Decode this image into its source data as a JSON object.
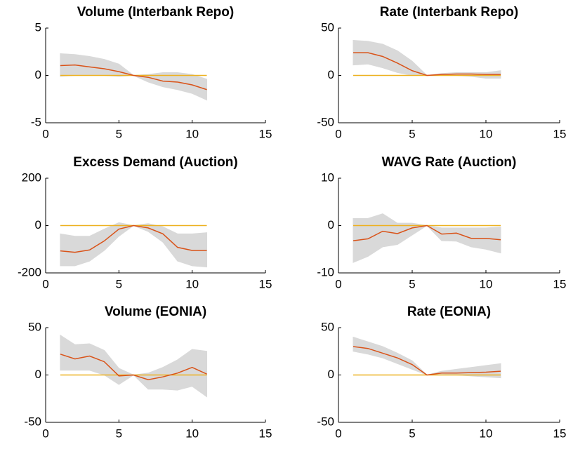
{
  "chart_data": [
    {
      "type": "line",
      "title": "Volume (Interbank Repo)",
      "x": [
        1,
        2,
        3,
        4,
        5,
        6,
        7,
        8,
        9,
        10,
        11
      ],
      "xlim": [
        0,
        15
      ],
      "xticks": [
        0,
        5,
        10,
        15
      ],
      "ylim": [
        -5,
        5
      ],
      "yticks": [
        -5,
        0,
        5
      ],
      "band": {
        "color": "#d9d9d9",
        "upper": [
          2.3,
          2.2,
          2.0,
          1.7,
          1.2,
          0,
          0.1,
          0.3,
          0.3,
          0.1,
          -0.4
        ],
        "lower": [
          -0.1,
          0,
          0,
          0,
          -0.1,
          0,
          -0.7,
          -1.2,
          -1.5,
          -1.9,
          -2.6
        ]
      },
      "series": [
        {
          "color": "#edb120",
          "values": [
            0,
            0,
            0,
            0,
            0,
            0,
            0,
            0,
            0,
            0,
            0
          ]
        },
        {
          "color": "#d95319",
          "values": [
            1.04,
            1.1,
            0.9,
            0.7,
            0.4,
            0,
            -0.2,
            -0.6,
            -0.7,
            -1.0,
            -1.5
          ]
        }
      ]
    },
    {
      "type": "line",
      "title": "Rate (Interbank Repo)",
      "x": [
        1,
        2,
        3,
        4,
        5,
        6,
        7,
        8,
        9,
        10,
        11
      ],
      "xlim": [
        0,
        15
      ],
      "xticks": [
        0,
        5,
        10,
        15
      ],
      "ylim": [
        -50,
        50
      ],
      "yticks": [
        -50,
        0,
        50
      ],
      "band": {
        "color": "#d9d9d9",
        "upper": [
          37,
          36,
          33,
          26,
          15,
          0,
          2,
          3,
          3,
          3,
          5
        ],
        "lower": [
          11,
          12,
          8,
          3,
          0,
          0,
          0,
          0,
          -1,
          -3,
          -3
        ]
      },
      "series": [
        {
          "color": "#edb120",
          "values": [
            0,
            0,
            0,
            0,
            0,
            0,
            0,
            0,
            0,
            0,
            0
          ]
        },
        {
          "color": "#d95319",
          "values": [
            24,
            24,
            20,
            13,
            5,
            0,
            1,
            1.5,
            1.5,
            1,
            1
          ]
        }
      ]
    },
    {
      "type": "line",
      "title": "Excess Demand (Auction)",
      "x": [
        1,
        2,
        3,
        4,
        5,
        6,
        7,
        8,
        9,
        10,
        11
      ],
      "xlim": [
        0,
        15
      ],
      "xticks": [
        0,
        5,
        10,
        15
      ],
      "ylim": [
        -200,
        200
      ],
      "yticks": [
        -200,
        0,
        200
      ],
      "band": {
        "color": "#d9d9d9",
        "upper": [
          -35,
          -45,
          -45,
          -15,
          12,
          0,
          8,
          -5,
          -35,
          -35,
          -30
        ],
        "lower": [
          -170,
          -170,
          -150,
          -105,
          -45,
          0,
          -25,
          -70,
          -150,
          -170,
          -175
        ]
      },
      "series": [
        {
          "color": "#edb120",
          "values": [
            0,
            0,
            0,
            0,
            0,
            0,
            0,
            0,
            0,
            0,
            0
          ]
        },
        {
          "color": "#d95319",
          "values": [
            -107,
            -113,
            -103,
            -65,
            -15,
            0,
            -10,
            -35,
            -92,
            -105,
            -105
          ]
        }
      ]
    },
    {
      "type": "line",
      "title": "WAVG Rate (Auction)",
      "x": [
        1,
        2,
        3,
        4,
        5,
        6,
        7,
        8,
        9,
        10,
        11
      ],
      "xlim": [
        0,
        15
      ],
      "xticks": [
        0,
        5,
        10,
        15
      ],
      "ylim": [
        -10,
        10
      ],
      "yticks": [
        -10,
        0,
        10
      ],
      "band": {
        "color": "#d9d9d9",
        "upper": [
          1.5,
          1.5,
          2.5,
          0.5,
          0.5,
          0,
          -0.5,
          -0.5,
          -0.5,
          -0.5,
          -0.3
        ],
        "lower": [
          -7.8,
          -6.5,
          -4.5,
          -4.0,
          -2.0,
          0,
          -3.2,
          -3.3,
          -4.5,
          -5.0,
          -5.8
        ]
      },
      "series": [
        {
          "color": "#edb120",
          "values": [
            0,
            0,
            0,
            0,
            0,
            0,
            0,
            0,
            0,
            0,
            0
          ]
        },
        {
          "color": "#d95319",
          "values": [
            -3.2,
            -2.8,
            -1.2,
            -1.7,
            -0.5,
            0,
            -1.8,
            -1.6,
            -2.7,
            -2.7,
            -3.0
          ]
        }
      ]
    },
    {
      "type": "line",
      "title": "Volume (EONIA)",
      "x": [
        1,
        2,
        3,
        4,
        5,
        6,
        7,
        8,
        9,
        10,
        11
      ],
      "xlim": [
        0,
        15
      ],
      "xticks": [
        0,
        5,
        10,
        15
      ],
      "ylim": [
        -50,
        50
      ],
      "yticks": [
        -50,
        0,
        50
      ],
      "band": {
        "color": "#d9d9d9",
        "upper": [
          42,
          32,
          33,
          26,
          7,
          0,
          2,
          8,
          16,
          27,
          25
        ],
        "lower": [
          5,
          5,
          5,
          0,
          -10,
          0,
          -15,
          -15,
          -16,
          -12,
          -23
        ]
      },
      "series": [
        {
          "color": "#edb120",
          "values": [
            0,
            0,
            0,
            0,
            0,
            0,
            0,
            0,
            0,
            0,
            0
          ]
        },
        {
          "color": "#d95319",
          "values": [
            22,
            17,
            20,
            14,
            -1,
            0,
            -5,
            -2,
            2,
            8,
            1
          ]
        }
      ]
    },
    {
      "type": "line",
      "title": "Rate (EONIA)",
      "x": [
        1,
        2,
        3,
        4,
        5,
        6,
        7,
        8,
        9,
        10,
        11
      ],
      "xlim": [
        0,
        15
      ],
      "xticks": [
        0,
        5,
        10,
        15
      ],
      "ylim": [
        -50,
        50
      ],
      "yticks": [
        -50,
        0,
        50
      ],
      "band": {
        "color": "#d9d9d9",
        "upper": [
          40,
          35,
          30,
          23,
          15,
          0,
          4,
          6,
          8,
          10,
          12
        ],
        "lower": [
          25,
          22,
          18,
          12,
          6,
          0,
          1,
          0,
          -1,
          -2,
          -3
        ]
      },
      "series": [
        {
          "color": "#edb120",
          "values": [
            0,
            0,
            0,
            0,
            0,
            0,
            0,
            0,
            0,
            0,
            0
          ]
        },
        {
          "color": "#d95319",
          "values": [
            30,
            28,
            23,
            18,
            11,
            0,
            2,
            2,
            2.5,
            3,
            4
          ]
        }
      ]
    }
  ]
}
